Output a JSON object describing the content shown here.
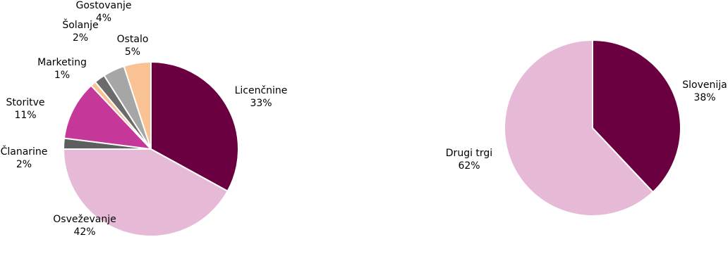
{
  "chart_data": [
    {
      "type": "pie",
      "slices": [
        {
          "label": "Licenčnine",
          "value": 33,
          "display": "33%",
          "color": "#6b0040"
        },
        {
          "label": "Osveževanje",
          "value": 42,
          "display": "42%",
          "color": "#e6bad6"
        },
        {
          "label": "Članarine",
          "value": 2,
          "display": "2%",
          "color": "#5e5e5e"
        },
        {
          "label": "Storitve",
          "value": 11,
          "display": "11%",
          "color": "#c6379a"
        },
        {
          "label": "Marketing",
          "value": 1,
          "display": "1%",
          "color": "#f8c294"
        },
        {
          "label": "Šolanje",
          "value": 2,
          "display": "2%",
          "color": "#6b6b6b"
        },
        {
          "label": "Gostovanje",
          "value": 4,
          "display": "4%",
          "color": "#a6a6a6"
        },
        {
          "label": "Ostalo",
          "value": 5,
          "display": "5%",
          "color": "#f8c294"
        }
      ]
    },
    {
      "type": "pie",
      "slices": [
        {
          "label": "Slovenija",
          "value": 38,
          "display": "38%",
          "color": "#6b0040"
        },
        {
          "label": "Drugi trgi",
          "value": 62,
          "display": "62%",
          "color": "#e6bad6"
        }
      ]
    }
  ]
}
